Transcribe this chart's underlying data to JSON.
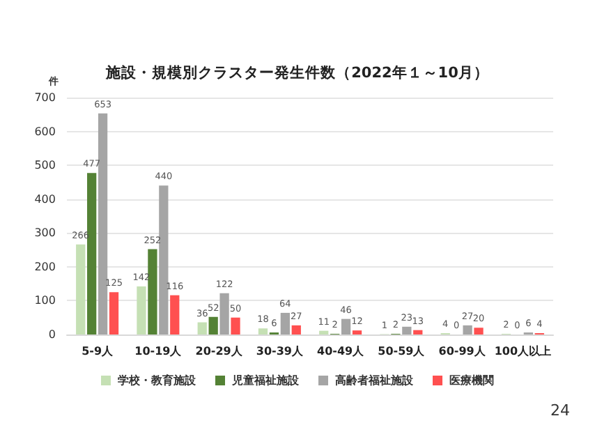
{
  "chart_data": {
    "type": "bar",
    "title": "施設・規模別クラスター発生件数（2022年１～10月）",
    "ylabel": "件",
    "categories": [
      "5-9人",
      "10-19人",
      "20-29人",
      "30-39人",
      "40-49人",
      "50-59人",
      "60-99人",
      "100人以上"
    ],
    "series": [
      {
        "name": "学校・教育施設",
        "color": "#c5e0b4",
        "values": [
          266,
          142,
          36,
          18,
          11,
          1,
          4,
          2
        ]
      },
      {
        "name": "児童福祉施設",
        "color": "#548235",
        "values": [
          477,
          252,
          52,
          6,
          2,
          2,
          0,
          0
        ]
      },
      {
        "name": "高齢者福祉施設",
        "color": "#a5a5a5",
        "values": [
          653,
          440,
          122,
          64,
          46,
          23,
          27,
          6
        ]
      },
      {
        "name": "医療機関",
        "color": "#ff5050",
        "values": [
          125,
          116,
          50,
          27,
          12,
          13,
          20,
          4
        ]
      }
    ],
    "ylim": [
      0,
      700
    ],
    "yticks": [
      0,
      100,
      200,
      300,
      400,
      500,
      600,
      700
    ],
    "grid": "y",
    "legend": "bottom",
    "data_labels": true,
    "annotations": [
      "24"
    ]
  }
}
